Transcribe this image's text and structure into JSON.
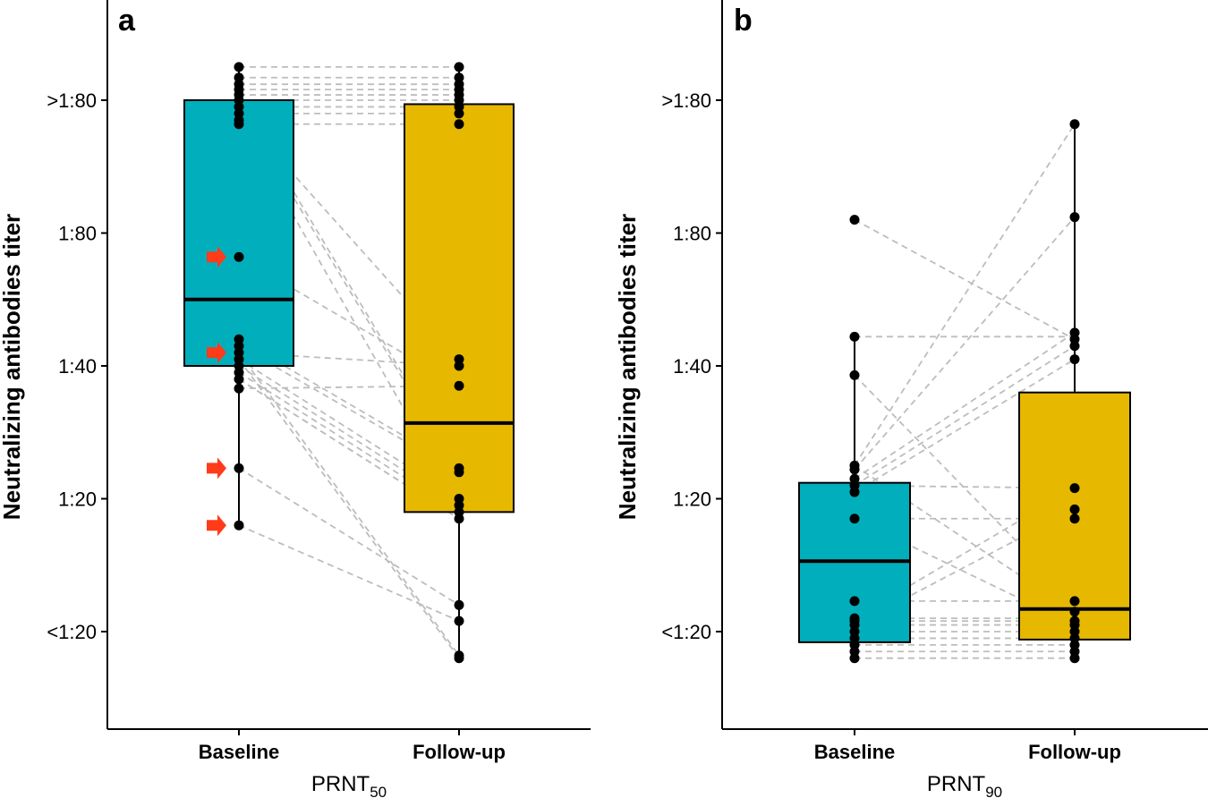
{
  "chart_data": [
    {
      "type": "box",
      "panel_label": "a",
      "ylabel": "Neutralizing antibodies titer",
      "xlabel_main": "PRNT",
      "xlabel_sub": "50",
      "categories": [
        "Baseline",
        "Follow-up"
      ],
      "y_ticks": [
        {
          "label": "<1:20",
          "value": 0
        },
        {
          "label": "1:20",
          "value": 1
        },
        {
          "label": "1:40",
          "value": 2
        },
        {
          "label": "1:80",
          "value": 3
        },
        {
          "label": ">1:80",
          "value": 4
        }
      ],
      "ylim": [
        -0.72,
        4.75
      ],
      "grid": false,
      "colors": {
        "Baseline": "#00AFBB",
        "Follow-up": "#E7B800",
        "pair_line": "#BDBDBD",
        "arrow": "#FF3B1A"
      },
      "boxes": [
        {
          "category": "Baseline",
          "whisker_low": 0.8,
          "q1": 2.0,
          "median": 2.5,
          "q3": 4.0,
          "whisker_high": 4.25
        },
        {
          "category": "Follow-up",
          "whisker_low": -0.2,
          "q1": 0.9,
          "median": 1.57,
          "q3": 3.97,
          "whisker_high": 4.25
        }
      ],
      "points": {
        "Baseline": [
          4.25,
          4.17,
          4.12,
          4.08,
          4.04,
          4.0,
          3.95,
          3.9,
          3.85,
          3.82,
          2.82,
          2.2,
          2.15,
          2.1,
          2.05,
          2.0,
          1.95,
          1.9,
          1.83,
          1.23,
          0.8
        ],
        "Follow-up": [
          4.25,
          4.17,
          4.12,
          4.08,
          4.04,
          4.0,
          3.95,
          3.9,
          3.82,
          2.05,
          2.0,
          1.85,
          1.23,
          1.2,
          1.0,
          0.95,
          0.9,
          0.85,
          0.2,
          0.08,
          -0.18,
          -0.2
        ],
        "arrows_at": [
          2.82,
          2.1,
          1.23,
          0.8
        ]
      },
      "pairs": [
        [
          4.25,
          4.25
        ],
        [
          4.17,
          4.17
        ],
        [
          4.12,
          4.12
        ],
        [
          4.08,
          4.08
        ],
        [
          4.04,
          4.04
        ],
        [
          4.0,
          4.0
        ],
        [
          3.95,
          3.95
        ],
        [
          3.9,
          3.9
        ],
        [
          3.82,
          3.82
        ],
        [
          4.0,
          1.23
        ],
        [
          3.95,
          1.2
        ],
        [
          3.85,
          0.95
        ],
        [
          3.9,
          2.05
        ],
        [
          2.82,
          1.85
        ],
        [
          2.1,
          2.0
        ],
        [
          1.83,
          1.85
        ],
        [
          2.2,
          1.23
        ],
        [
          2.15,
          1.2
        ],
        [
          2.05,
          1.0
        ],
        [
          2.0,
          0.95
        ],
        [
          1.95,
          0.9
        ],
        [
          1.9,
          0.85
        ],
        [
          1.9,
          0.85
        ],
        [
          2.1,
          -0.18
        ],
        [
          2.05,
          -0.2
        ],
        [
          1.23,
          0.2
        ],
        [
          0.8,
          0.08
        ]
      ]
    },
    {
      "type": "box",
      "panel_label": "b",
      "ylabel": "Neutralizing antibodies titer",
      "xlabel_main": "PRNT",
      "xlabel_sub": "90",
      "categories": [
        "Baseline",
        "Follow-up"
      ],
      "y_ticks": [
        {
          "label": "<1:20",
          "value": 0
        },
        {
          "label": "1:20",
          "value": 1
        },
        {
          "label": "1:40",
          "value": 2
        },
        {
          "label": "1:80",
          "value": 3
        },
        {
          "label": ">1:80",
          "value": 4
        }
      ],
      "ylim": [
        -0.72,
        4.75
      ],
      "grid": false,
      "colors": {
        "Baseline": "#00AFBB",
        "Follow-up": "#E7B800",
        "pair_line": "#BDBDBD"
      },
      "boxes": [
        {
          "category": "Baseline",
          "whisker_low": -0.2,
          "q1": -0.08,
          "median": 0.53,
          "q3": 1.12,
          "whisker_high": 2.22
        },
        {
          "category": "Follow-up",
          "whisker_low": -0.2,
          "q1": -0.06,
          "median": 0.17,
          "q3": 1.8,
          "whisker_high": 3.82
        }
      ],
      "points": {
        "Baseline": [
          3.1,
          2.22,
          1.93,
          1.25,
          1.22,
          1.15,
          1.1,
          1.05,
          0.85,
          0.23,
          0.1,
          0.08,
          0.05,
          0.0,
          -0.05,
          -0.1,
          -0.15,
          -0.2
        ],
        "Follow-up": [
          3.82,
          3.12,
          2.25,
          2.2,
          2.15,
          2.05,
          1.08,
          0.92,
          0.85,
          0.23,
          0.15,
          0.08,
          0.05,
          0.0,
          -0.05,
          -0.1,
          -0.15,
          -0.2
        ]
      },
      "pairs": [
        [
          3.1,
          2.2
        ],
        [
          2.22,
          2.22
        ],
        [
          1.93,
          0.23
        ],
        [
          1.25,
          3.82
        ],
        [
          1.22,
          3.12
        ],
        [
          1.15,
          2.25
        ],
        [
          1.1,
          2.15
        ],
        [
          1.05,
          2.05
        ],
        [
          1.1,
          1.08
        ],
        [
          0.85,
          0.85
        ],
        [
          0.85,
          0.05
        ],
        [
          1.25,
          0.15
        ],
        [
          0.1,
          1.08
        ],
        [
          0.05,
          0.92
        ],
        [
          0.23,
          0.23
        ],
        [
          0.1,
          0.1
        ],
        [
          0.08,
          0.08
        ],
        [
          0.05,
          0.05
        ],
        [
          0.0,
          0.0
        ],
        [
          -0.05,
          -0.05
        ],
        [
          -0.1,
          -0.1
        ],
        [
          -0.15,
          -0.15
        ],
        [
          -0.2,
          -0.2
        ]
      ]
    }
  ]
}
